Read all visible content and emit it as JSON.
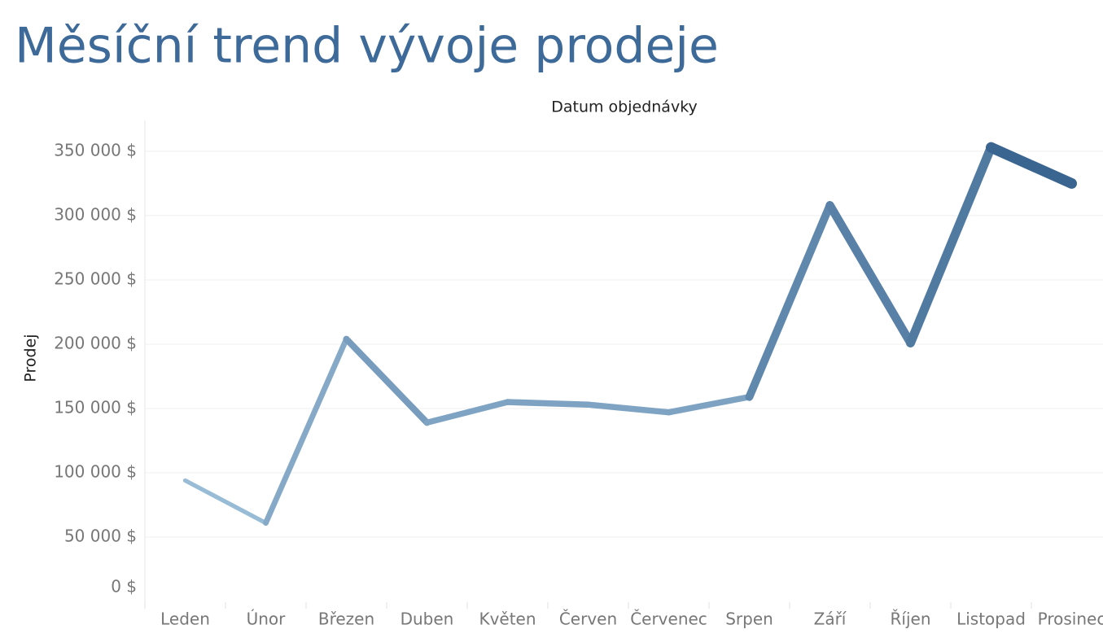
{
  "chart_data": {
    "type": "line",
    "title": "Měsíční trend vývoje prodeje",
    "x_label": "Datum objednávky",
    "y_label": "Prodej",
    "categories": [
      "Leden",
      "Únor",
      "Březen",
      "Duben",
      "Květen",
      "Červen",
      "Červenec",
      "Srpen",
      "Září",
      "Říjen",
      "Listopad",
      "Prosinec"
    ],
    "values": [
      94000,
      61000,
      204000,
      139000,
      155000,
      153000,
      147000,
      159000,
      308000,
      201000,
      353000,
      325000
    ],
    "color_range": [
      "#b4d4ea",
      "#2e5a88"
    ],
    "ylim": [
      0,
      374000
    ],
    "yticks": [
      {
        "value": 0,
        "label": "0 $"
      },
      {
        "value": 50000,
        "label": "50 000 $"
      },
      {
        "value": 100000,
        "label": "100 000 $"
      },
      {
        "value": 150000,
        "label": "150 000 $"
      },
      {
        "value": 200000,
        "label": "200 000 $"
      },
      {
        "value": 250000,
        "label": "250 000 $"
      },
      {
        "value": 300000,
        "label": "300 000 $"
      },
      {
        "value": 350000,
        "label": "350 000 $"
      }
    ],
    "grid": true
  }
}
